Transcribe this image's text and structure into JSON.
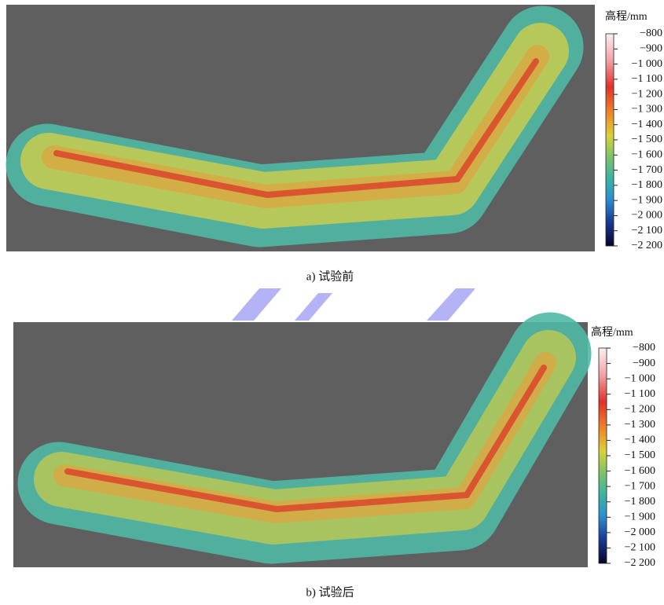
{
  "panels": [
    {
      "caption": "a) 试验前",
      "colorbar": {
        "title": "高程/mm",
        "ticks": [
          "−800",
          "−900",
          "−1 000",
          "−1 100",
          "−1 200",
          "−1 300",
          "−1 400",
          "−1 500",
          "−1 600",
          "−1 700",
          "−1 800",
          "−1 900",
          "−2 000",
          "−2 100",
          "−2 200"
        ]
      }
    },
    {
      "caption": "b) 试验后",
      "colorbar": {
        "title": "高程/mm",
        "ticks": [
          "−800",
          "−900",
          "−1 000",
          "−1 100",
          "−1 200",
          "−1 300",
          "−1 400",
          "−1 500",
          "−1 600",
          "−1 700",
          "−1 800",
          "−1 900",
          "−2 000",
          "−2 100",
          "−2 200"
        ]
      }
    }
  ]
}
